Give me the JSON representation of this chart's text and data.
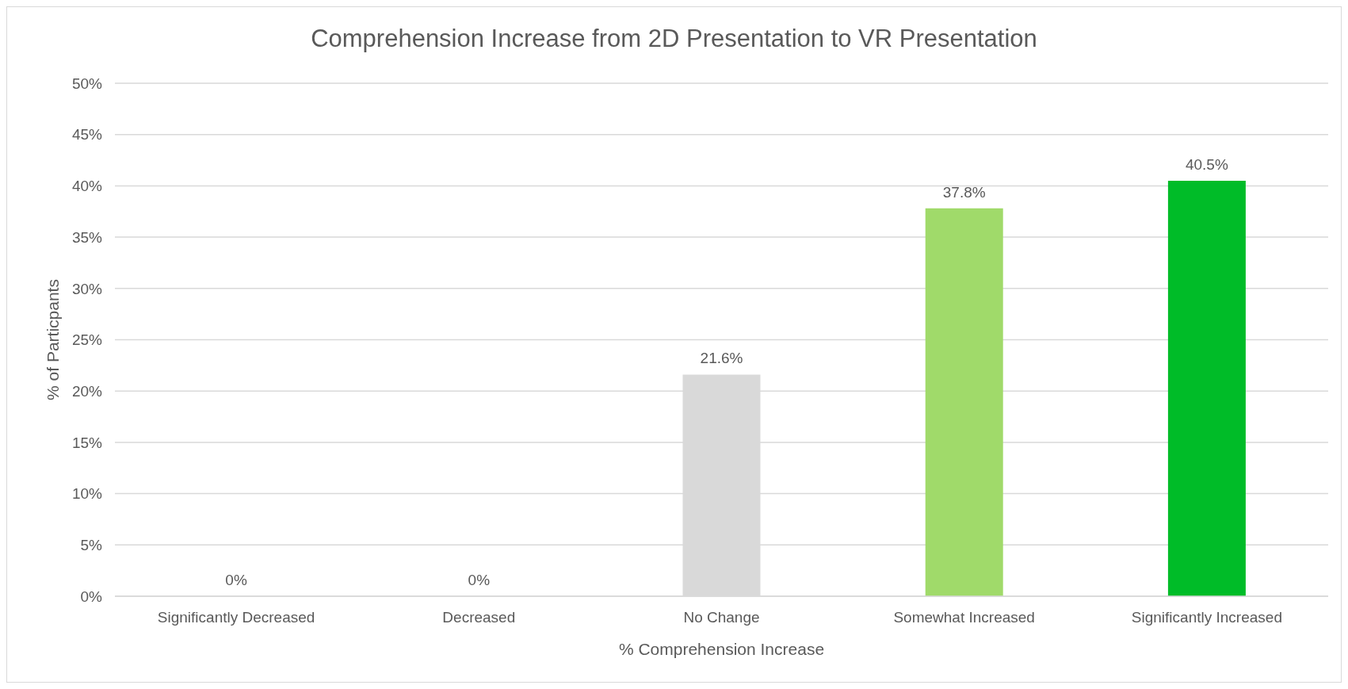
{
  "chart_data": {
    "type": "bar",
    "title": "Comprehension Increase from 2D Presentation to VR Presentation",
    "xlabel": "% Comprehension Increase",
    "ylabel": "% of Particpants",
    "categories": [
      "Significantly Decreased",
      "Decreased",
      "No Change",
      "Somewhat Increased",
      "Significantly Increased"
    ],
    "values": [
      0,
      0,
      21.6,
      37.8,
      40.5
    ],
    "colors": [
      "#d9d9d9",
      "#d9d9d9",
      "#d9d9d9",
      "#a0da6a",
      "#00bc28"
    ],
    "value_labels": [
      "0%",
      "0%",
      "21.6%",
      "37.8%",
      "40.5%"
    ],
    "ylim": [
      0,
      50
    ],
    "yticks": [
      {
        "value": 0,
        "label": "0%"
      },
      {
        "value": 5,
        "label": "5%"
      },
      {
        "value": 10,
        "label": "10%"
      },
      {
        "value": 15,
        "label": "15%"
      },
      {
        "value": 20,
        "label": "20%"
      },
      {
        "value": 25,
        "label": "25%"
      },
      {
        "value": 30,
        "label": "30%"
      },
      {
        "value": 35,
        "label": "35%"
      },
      {
        "value": 40,
        "label": "40%"
      },
      {
        "value": 45,
        "label": "45%"
      },
      {
        "value": 50,
        "label": "50%"
      }
    ],
    "grid": "y",
    "legend": false
  }
}
